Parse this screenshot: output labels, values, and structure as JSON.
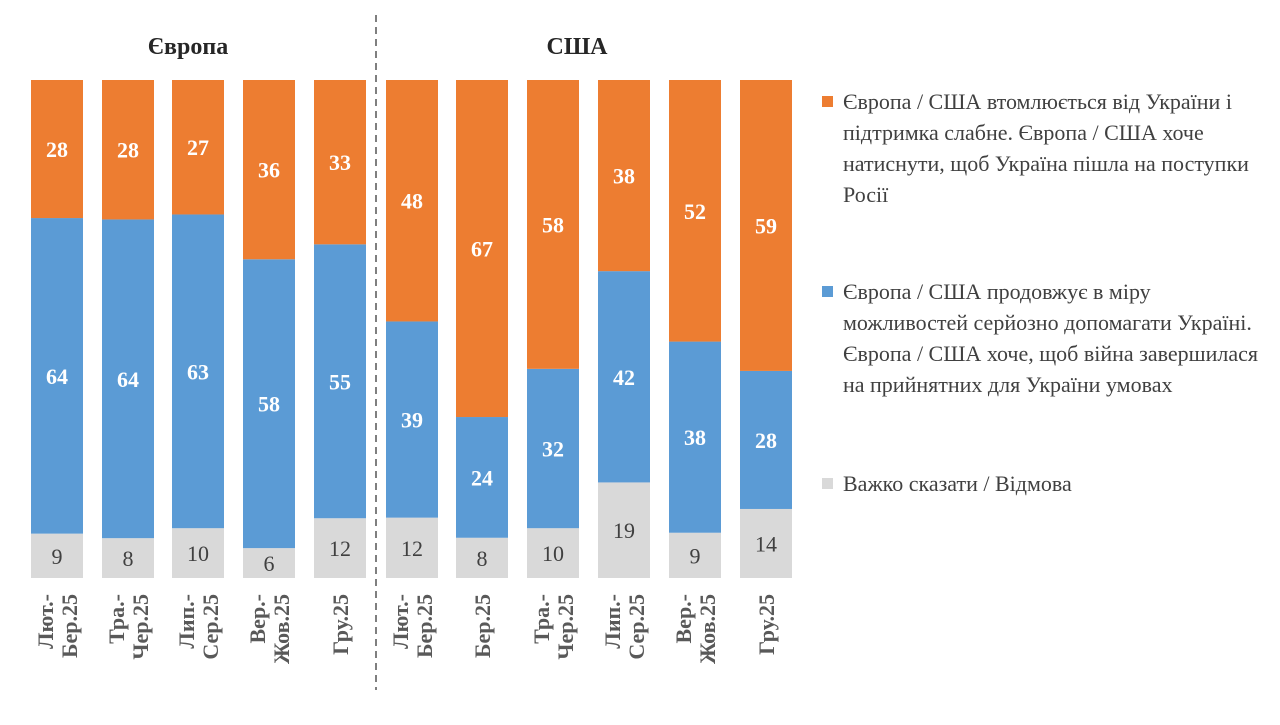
{
  "chart_data": {
    "type": "bar",
    "stacked": true,
    "groups": [
      {
        "title": "Європа",
        "categories": [
          [
            "Лют.-",
            "Бер.25"
          ],
          [
            "Тра.-",
            "Чер.25"
          ],
          [
            "Лип.-",
            "Сер.25"
          ],
          [
            "Вер.-",
            "Жов.25"
          ],
          [
            "Гру.25"
          ]
        ]
      },
      {
        "title": "США",
        "categories": [
          [
            "Лют.-",
            "Бер.25"
          ],
          [
            "Бер.25"
          ],
          [
            "Тра.-",
            "Чер.25"
          ],
          [
            "Лип.-",
            "Сер.25"
          ],
          [
            "Вер.-",
            "Жов.25"
          ],
          [
            "Гру.25"
          ]
        ]
      }
    ],
    "series": [
      {
        "name": "Європа / США втомлюється від України і підтримка слабне. Європа / США хоче натиснути, щоб Україна пішла на поступки Росії",
        "color": "#ED7D31",
        "values": [
          [
            28,
            28,
            27,
            36,
            33
          ],
          [
            48,
            67,
            58,
            38,
            52,
            59
          ]
        ]
      },
      {
        "name": "Європа / США продовжує в міру можливостей серйозно допомагати Україні. Європа / США хоче, щоб війна завершилася на прийнятних для України умовах",
        "color": "#5B9BD5",
        "values": [
          [
            64,
            64,
            63,
            58,
            55
          ],
          [
            39,
            24,
            32,
            42,
            38,
            28
          ]
        ]
      },
      {
        "name": "Важко сказати / Відмова",
        "color": "#D9D9D9",
        "values": [
          [
            9,
            8,
            10,
            6,
            12
          ],
          [
            12,
            8,
            10,
            19,
            9,
            14
          ]
        ]
      }
    ],
    "legend_position": "right",
    "grid": false
  }
}
